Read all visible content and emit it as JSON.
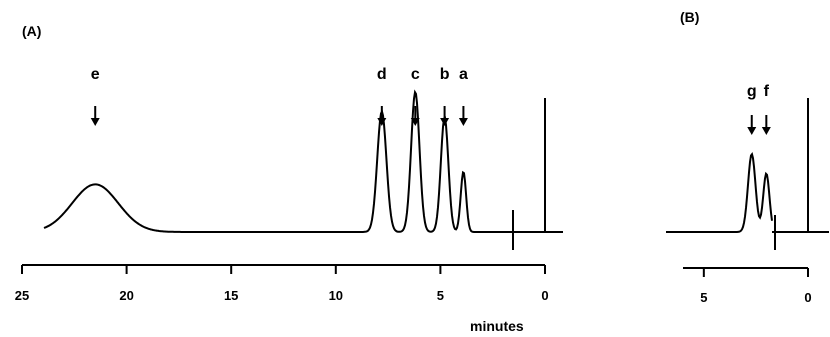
{
  "chart_data": [
    {
      "type": "line",
      "panel_label": "(A)",
      "xlabel": "minutes",
      "xlim": [
        25,
        0
      ],
      "x_ticks": [
        "25",
        "20",
        "15",
        "10",
        "5",
        "0"
      ],
      "peaks": [
        {
          "label": "e",
          "time": 21.5,
          "height": 0.34
        },
        {
          "label": "d",
          "time": 7.8,
          "height": 0.86
        },
        {
          "label": "c",
          "time": 6.2,
          "height": 1.0
        },
        {
          "label": "b",
          "time": 4.8,
          "height": 0.82
        },
        {
          "label": "a",
          "time": 3.9,
          "height": 0.43
        }
      ]
    },
    {
      "type": "line",
      "panel_label": "(B)",
      "xlim": [
        6,
        0
      ],
      "x_ticks": [
        "5",
        "0"
      ],
      "peaks": [
        {
          "label": "g",
          "time": 2.7,
          "height": 0.52
        },
        {
          "label": "f",
          "time": 2.0,
          "height": 0.39
        }
      ]
    }
  ]
}
